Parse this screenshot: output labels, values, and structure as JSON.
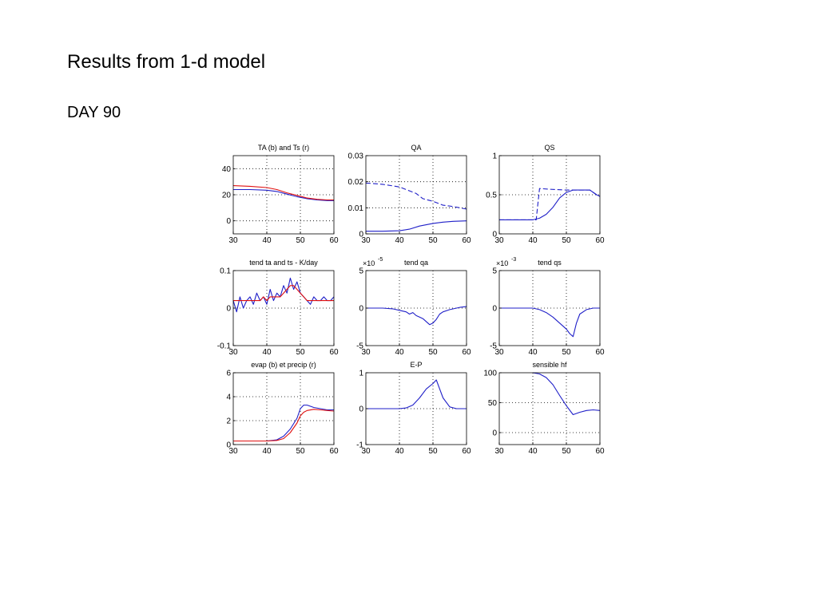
{
  "slide": {
    "title": "Results from 1-d model",
    "subtitle": "DAY 90"
  },
  "colors": {
    "blue": "#1f1fc8",
    "red": "#e01010",
    "grid": "#000000"
  },
  "chart_data": [
    {
      "id": "ta-ts",
      "type": "line",
      "title": "TA (b) and Ts (r)",
      "xlim": [
        30,
        60
      ],
      "ylim": [
        -10,
        50
      ],
      "xticks": [
        30,
        40,
        50,
        60
      ],
      "yticks": [
        0,
        20,
        40
      ],
      "ytick_labels": [
        "0",
        "20",
        "40"
      ],
      "grid": true,
      "series": [
        {
          "color": "#1f1fc8",
          "dash": false,
          "x": [
            30,
            35,
            40,
            43,
            46,
            49,
            52,
            55,
            58,
            60
          ],
          "y": [
            24,
            24,
            23.5,
            22.5,
            20.5,
            18.5,
            17,
            16,
            15.5,
            15.5
          ]
        },
        {
          "color": "#e01010",
          "dash": false,
          "x": [
            30,
            35,
            40,
            43,
            46,
            49,
            52,
            55,
            58,
            60
          ],
          "y": [
            27,
            26.5,
            25.5,
            24,
            21.5,
            19.5,
            17.5,
            16.5,
            16,
            16
          ]
        }
      ]
    },
    {
      "id": "qa",
      "type": "line",
      "title": "QA",
      "xlim": [
        30,
        60
      ],
      "ylim": [
        0,
        0.03
      ],
      "xticks": [
        30,
        40,
        50,
        60
      ],
      "yticks": [
        0,
        0.01,
        0.02,
        0.03
      ],
      "ytick_labels": [
        "0",
        "0.01",
        "0.02",
        "0.03"
      ],
      "grid": true,
      "series": [
        {
          "color": "#1f1fc8",
          "dash": true,
          "x": [
            30,
            35,
            40,
            43,
            45,
            47,
            50,
            53,
            56,
            60
          ],
          "y": [
            0.0195,
            0.019,
            0.018,
            0.0165,
            0.0155,
            0.0135,
            0.0125,
            0.011,
            0.0105,
            0.0095
          ]
        },
        {
          "color": "#1f1fc8",
          "dash": false,
          "x": [
            30,
            35,
            40,
            43,
            46,
            50,
            53,
            56,
            60
          ],
          "y": [
            0.001,
            0.001,
            0.0012,
            0.0018,
            0.003,
            0.004,
            0.0045,
            0.0048,
            0.005
          ]
        }
      ]
    },
    {
      "id": "qs",
      "type": "line",
      "title": "QS",
      "xlim": [
        30,
        60
      ],
      "ylim": [
        0,
        1
      ],
      "xticks": [
        30,
        40,
        50,
        60
      ],
      "yticks": [
        0,
        0.5,
        1
      ],
      "ytick_labels": [
        "0",
        "0.5",
        "1"
      ],
      "grid": true,
      "series": [
        {
          "color": "#1f1fc8",
          "dash": true,
          "x": [
            30,
            35,
            40,
            41,
            42,
            45,
            50,
            55,
            57,
            59,
            60
          ],
          "y": [
            0.18,
            0.18,
            0.18,
            0.18,
            0.58,
            0.57,
            0.56,
            0.56,
            0.56,
            0.5,
            0.48
          ]
        },
        {
          "color": "#1f1fc8",
          "dash": false,
          "x": [
            30,
            35,
            40,
            42,
            44,
            46,
            48,
            50,
            52,
            55,
            57,
            59,
            60
          ],
          "y": [
            0.18,
            0.18,
            0.18,
            0.2,
            0.25,
            0.34,
            0.46,
            0.53,
            0.56,
            0.56,
            0.56,
            0.5,
            0.48
          ]
        }
      ]
    },
    {
      "id": "tend-ta-ts",
      "type": "line",
      "title": "tend ta and ts - K/day",
      "xlim": [
        30,
        60
      ],
      "ylim": [
        -0.1,
        0.1
      ],
      "xticks": [
        30,
        40,
        50,
        60
      ],
      "yticks": [
        -0.1,
        0,
        0.1
      ],
      "ytick_labels": [
        "-0.1",
        "0",
        "0.1"
      ],
      "grid": true,
      "series": [
        {
          "color": "#1f1fc8",
          "dash": false,
          "x": [
            30,
            31,
            32,
            33,
            34,
            35,
            36,
            37,
            38,
            39,
            40,
            41,
            42,
            43,
            44,
            45,
            46,
            47,
            48,
            49,
            50,
            51,
            52,
            53,
            54,
            55,
            56,
            57,
            58,
            59,
            60
          ],
          "y": [
            0.02,
            -0.01,
            0.03,
            0.0,
            0.02,
            0.03,
            0.01,
            0.04,
            0.02,
            0.03,
            0.01,
            0.05,
            0.02,
            0.04,
            0.03,
            0.06,
            0.04,
            0.08,
            0.05,
            0.07,
            0.04,
            0.03,
            0.02,
            0.01,
            0.03,
            0.02,
            0.02,
            0.03,
            0.02,
            0.02,
            0.03
          ]
        },
        {
          "color": "#e01010",
          "dash": false,
          "x": [
            30,
            31,
            32,
            33,
            34,
            35,
            36,
            37,
            38,
            39,
            40,
            41,
            42,
            43,
            44,
            45,
            46,
            47,
            48,
            49,
            50,
            51,
            52,
            53,
            54,
            55,
            56,
            57,
            58,
            59,
            60
          ],
          "y": [
            0.02,
            0.02,
            0.02,
            0.02,
            0.02,
            0.02,
            0.02,
            0.02,
            0.02,
            0.03,
            0.02,
            0.03,
            0.03,
            0.03,
            0.03,
            0.04,
            0.05,
            0.06,
            0.06,
            0.05,
            0.04,
            0.03,
            0.02,
            0.02,
            0.02,
            0.02,
            0.02,
            0.02,
            0.02,
            0.02,
            0.02
          ]
        }
      ]
    },
    {
      "id": "tend-qa",
      "type": "line",
      "title": "tend qa",
      "scale_label": "×10",
      "scale_exponent": "-5",
      "xlim": [
        30,
        60
      ],
      "ylim": [
        -5,
        5
      ],
      "xticks": [
        30,
        40,
        50,
        60
      ],
      "yticks": [
        -5,
        0,
        5
      ],
      "ytick_labels": [
        "-5",
        "0",
        "5"
      ],
      "grid": true,
      "series": [
        {
          "color": "#1f1fc8",
          "dash": false,
          "x": [
            30,
            35,
            38,
            40,
            42,
            43,
            44,
            45,
            46,
            47,
            48,
            49,
            50,
            51,
            52,
            53,
            55,
            58,
            60
          ],
          "y": [
            0,
            0,
            -0.1,
            -0.3,
            -0.5,
            -0.8,
            -0.6,
            -1.0,
            -1.2,
            -1.4,
            -1.8,
            -2.2,
            -2.0,
            -1.5,
            -0.8,
            -0.5,
            -0.2,
            0.1,
            0.2
          ]
        }
      ]
    },
    {
      "id": "tend-qs",
      "type": "line",
      "title": "tend qs",
      "scale_label": "×10",
      "scale_exponent": "-3",
      "xlim": [
        30,
        60
      ],
      "ylim": [
        -5,
        5
      ],
      "xticks": [
        30,
        40,
        50,
        60
      ],
      "yticks": [
        -5,
        0,
        5
      ],
      "ytick_labels": [
        "-5",
        "0",
        "5"
      ],
      "grid": true,
      "series": [
        {
          "color": "#1f1fc8",
          "dash": false,
          "x": [
            30,
            35,
            40,
            42,
            44,
            46,
            48,
            50,
            51,
            52,
            53,
            54,
            56,
            58,
            60
          ],
          "y": [
            0,
            0,
            0,
            -0.2,
            -0.6,
            -1.2,
            -2.0,
            -2.8,
            -3.4,
            -3.8,
            -2.0,
            -0.8,
            -0.2,
            0,
            0
          ]
        }
      ]
    },
    {
      "id": "evap-precip",
      "type": "line",
      "title": "evap (b) et precip (r)",
      "xlim": [
        30,
        60
      ],
      "ylim": [
        0,
        6
      ],
      "xticks": [
        30,
        40,
        50,
        60
      ],
      "yticks": [
        0,
        2,
        4,
        6
      ],
      "ytick_labels": [
        "0",
        "2",
        "4",
        "6"
      ],
      "grid": true,
      "series": [
        {
          "color": "#1f1fc8",
          "dash": false,
          "x": [
            30,
            35,
            40,
            43,
            45,
            47,
            49,
            50,
            51,
            52,
            54,
            56,
            58,
            60
          ],
          "y": [
            0.3,
            0.3,
            0.3,
            0.4,
            0.7,
            1.3,
            2.2,
            3.0,
            3.3,
            3.3,
            3.1,
            3.0,
            2.9,
            2.9
          ]
        },
        {
          "color": "#e01010",
          "dash": false,
          "x": [
            30,
            35,
            40,
            43,
            45,
            47,
            49,
            50,
            51,
            52,
            54,
            56,
            58,
            60
          ],
          "y": [
            0.3,
            0.3,
            0.3,
            0.35,
            0.5,
            1.0,
            1.8,
            2.4,
            2.7,
            2.85,
            2.95,
            2.9,
            2.85,
            2.8
          ]
        }
      ]
    },
    {
      "id": "e-p",
      "type": "line",
      "title": "E-P",
      "xlim": [
        30,
        60
      ],
      "ylim": [
        -1,
        1
      ],
      "xticks": [
        30,
        40,
        50,
        60
      ],
      "yticks": [
        -1,
        0,
        1
      ],
      "ytick_labels": [
        "-1",
        "0",
        "1"
      ],
      "grid": true,
      "series": [
        {
          "color": "#1f1fc8",
          "dash": false,
          "x": [
            30,
            35,
            40,
            42,
            44,
            46,
            48,
            50,
            51,
            52,
            53,
            55,
            57,
            60
          ],
          "y": [
            0,
            0,
            0,
            0.02,
            0.1,
            0.3,
            0.55,
            0.7,
            0.8,
            0.55,
            0.3,
            0.05,
            0,
            0
          ]
        }
      ]
    },
    {
      "id": "sensible-hf",
      "type": "line",
      "title": "sensible hf",
      "xlim": [
        30,
        60
      ],
      "ylim": [
        -20,
        100
      ],
      "xticks": [
        30,
        40,
        50,
        60
      ],
      "yticks": [
        0,
        50,
        100
      ],
      "ytick_labels": [
        "0",
        "50",
        "100"
      ],
      "grid": true,
      "series": [
        {
          "color": "#1f1fc8",
          "dash": false,
          "x": [
            40,
            42,
            44,
            46,
            48,
            50,
            52,
            54,
            56,
            58,
            60
          ],
          "y": [
            100,
            98,
            92,
            80,
            62,
            45,
            30,
            34,
            37,
            38,
            37
          ]
        }
      ]
    }
  ]
}
